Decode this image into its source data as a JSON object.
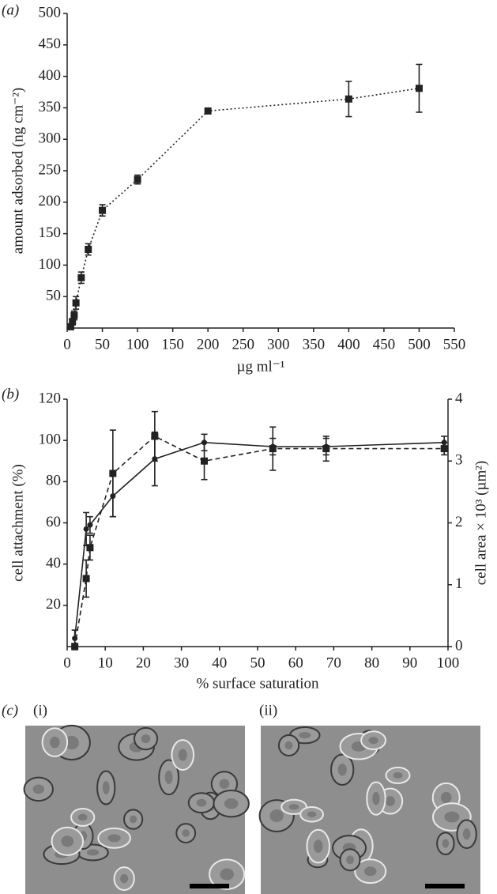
{
  "chart_data": [
    {
      "type": "line",
      "label": "(a)",
      "ylabel": "amount adsorbed (ng cm⁻²)",
      "xlabel": "µg ml⁻¹",
      "x": [
        5,
        7.5,
        10,
        12.5,
        20,
        30,
        50,
        100,
        200,
        400,
        500
      ],
      "xlim": [
        0,
        550
      ],
      "xticks": [
        0,
        50,
        100,
        150,
        200,
        250,
        300,
        350,
        400,
        450,
        500,
        550
      ],
      "ylim": [
        0,
        500
      ],
      "yticks": [
        50,
        100,
        150,
        200,
        250,
        300,
        350,
        400,
        450,
        500
      ],
      "series": [
        {
          "color": "#222222",
          "line_style": "dotted",
          "marker": "square",
          "values": [
            2,
            10,
            20,
            40,
            80,
            125,
            187,
            236,
            345,
            364,
            381
          ],
          "errors": [
            4,
            5,
            7,
            10,
            9,
            9,
            9,
            7,
            3,
            28,
            38
          ]
        }
      ]
    },
    {
      "type": "line",
      "label": "(b)",
      "ylabel": "cell attachment (%)",
      "y2label": "cell area × 10³ (µm²)",
      "xlabel": "% surface saturation",
      "x": [
        2,
        5,
        6,
        12,
        23,
        36,
        54,
        68,
        99
      ],
      "xlim": [
        0,
        100
      ],
      "xticks": [
        0,
        10,
        20,
        30,
        40,
        50,
        60,
        70,
        80,
        90,
        100
      ],
      "ylim": [
        0,
        120
      ],
      "yticks": [
        20,
        40,
        60,
        80,
        100,
        120
      ],
      "y2lim": [
        0,
        4
      ],
      "y2ticks": [
        0,
        1,
        2,
        3,
        4
      ],
      "series": [
        {
          "color": "#222222",
          "line_style": "solid",
          "marker": "circle",
          "values": [
            4,
            57,
            59,
            73,
            91,
            99,
            97,
            97,
            99
          ],
          "errors": [
            4,
            8,
            4,
            10,
            13,
            4,
            4,
            4,
            3
          ]
        },
        {
          "color": "#222222",
          "line_style": "dashed",
          "marker": "square",
          "axis": "y2",
          "values": [
            0,
            1.1,
            1.6,
            2.8,
            3.4,
            3.0,
            3.2,
            3.2,
            3.2
          ],
          "errors": [
            0.05,
            0.3,
            0.2,
            0.7,
            0.4,
            0.3,
            0.35,
            0.2,
            0.1
          ]
        }
      ]
    }
  ],
  "figure_c": {
    "label": "(c)",
    "panels": [
      "(i)",
      "(ii)"
    ]
  }
}
